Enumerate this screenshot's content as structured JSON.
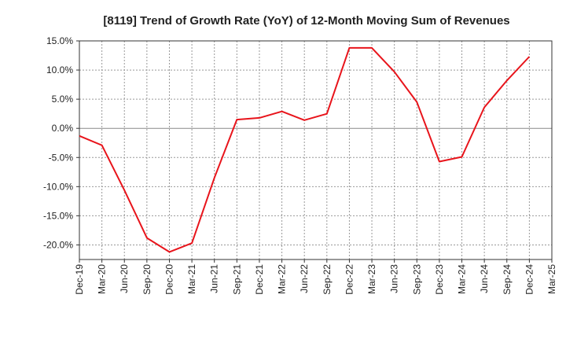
{
  "chart_data": {
    "type": "line",
    "title": "[8119]  Trend of Growth Rate (YoY) of 12-Month Moving Sum of Revenues",
    "xlabel": "",
    "ylabel": "",
    "ylim": [
      -22.5,
      15.0
    ],
    "yticks": [
      15.0,
      10.0,
      5.0,
      0.0,
      -5.0,
      -10.0,
      -15.0,
      -20.0
    ],
    "ytick_labels": [
      "15.0%",
      "10.0%",
      "5.0%",
      "0.0%",
      "-5.0%",
      "-10.0%",
      "-15.0%",
      "-20.0%"
    ],
    "categories": [
      "Dec-19",
      "Mar-20",
      "Jun-20",
      "Sep-20",
      "Dec-20",
      "Mar-21",
      "Jun-21",
      "Sep-21",
      "Dec-21",
      "Mar-22",
      "Jun-22",
      "Sep-22",
      "Dec-22",
      "Mar-23",
      "Jun-23",
      "Sep-23",
      "Dec-23",
      "Mar-24",
      "Jun-24",
      "Sep-24",
      "Dec-24",
      "Mar-25"
    ],
    "grid": true,
    "series": [
      {
        "color": "#e8141b",
        "values": [
          -1.3,
          -2.9,
          -10.6,
          -18.8,
          -21.2,
          -19.7,
          -8.5,
          1.5,
          1.8,
          2.9,
          1.4,
          2.5,
          13.8,
          13.8,
          9.7,
          4.5,
          -5.7,
          -4.9,
          3.6,
          8.2,
          12.3,
          null
        ]
      }
    ],
    "colors": {
      "line": "#e8141b",
      "grid": "#999999",
      "zero": "#888888",
      "axis": "#333333"
    }
  }
}
